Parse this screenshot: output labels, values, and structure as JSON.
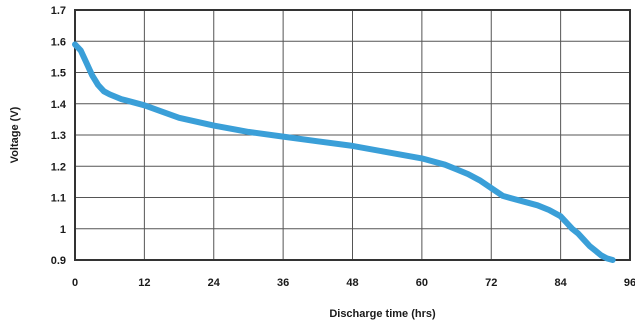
{
  "chart_data": {
    "type": "line",
    "title": "",
    "xlabel": "Discharge time (hrs)",
    "ylabel": "Voltage (V)",
    "xlim": [
      0,
      96
    ],
    "ylim": [
      0.9,
      1.7
    ],
    "grid": true,
    "x_ticks": [
      "0",
      "12",
      "24",
      "36",
      "48",
      "60",
      "72",
      "84",
      "96"
    ],
    "y_ticks": [
      "0.9",
      "1",
      "1.1",
      "1.2",
      "1.3",
      "1.4",
      "1.5",
      "1.6",
      "1.7"
    ],
    "colors": {
      "line": "#3a9fd8",
      "grid": "#555555",
      "frame": "#333333"
    },
    "series": [
      {
        "name": "",
        "x": [
          0,
          1,
          2,
          3,
          4,
          5,
          6,
          8,
          10,
          12,
          18,
          24,
          30,
          36,
          42,
          48,
          54,
          60,
          64,
          66,
          68,
          70,
          72,
          74,
          76,
          78,
          80,
          82,
          84,
          85,
          86,
          87,
          88,
          89,
          90,
          91,
          92,
          93
        ],
        "y": [
          1.59,
          1.57,
          1.53,
          1.49,
          1.46,
          1.44,
          1.43,
          1.415,
          1.405,
          1.395,
          1.355,
          1.33,
          1.31,
          1.295,
          1.28,
          1.265,
          1.245,
          1.225,
          1.205,
          1.19,
          1.175,
          1.155,
          1.13,
          1.105,
          1.095,
          1.085,
          1.075,
          1.06,
          1.04,
          1.02,
          1.0,
          0.985,
          0.965,
          0.945,
          0.93,
          0.915,
          0.905,
          0.9
        ]
      }
    ]
  }
}
